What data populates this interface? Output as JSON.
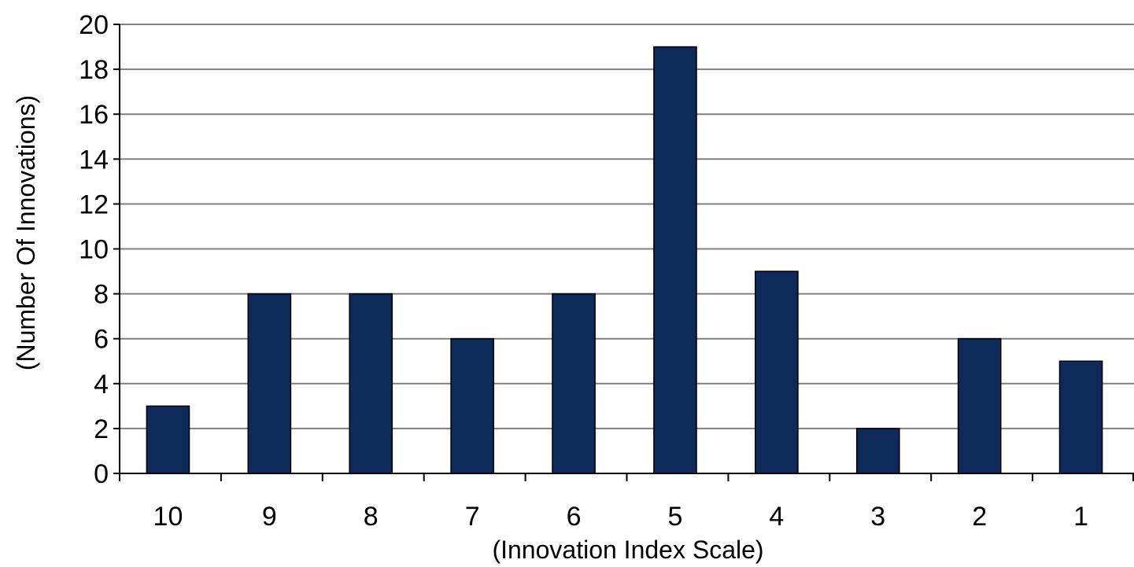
{
  "chart_data": {
    "type": "bar",
    "title": "",
    "xlabel": "(Innovation Index Scale)",
    "ylabel": "(Number Of Innovations)",
    "categories": [
      "10",
      "9",
      "8",
      "7",
      "6",
      "5",
      "4",
      "3",
      "2",
      "1"
    ],
    "values": [
      3,
      8,
      8,
      6,
      8,
      19,
      9,
      2,
      6,
      5
    ],
    "ylim": [
      0,
      20
    ],
    "yticks": [
      0,
      2,
      4,
      6,
      8,
      10,
      12,
      14,
      16,
      18,
      20
    ],
    "grid": true,
    "legend": "none",
    "bar_color": "#0e2a5a",
    "grid_color": "#808080",
    "axis_color": "#000000"
  }
}
